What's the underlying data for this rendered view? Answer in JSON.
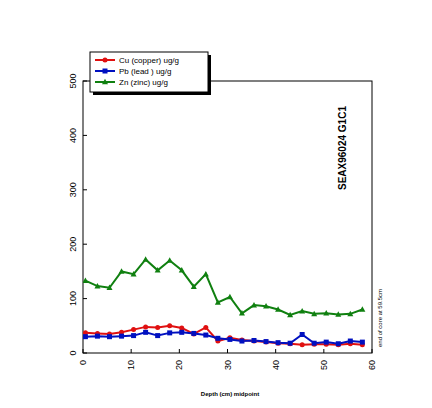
{
  "chart_data": {
    "type": "line",
    "x_label": "Depth (cm) midpoint",
    "annotations": [
      "SEAX96024 G1C1",
      "end of core at 59.5cm"
    ],
    "x": [
      0.5,
      3,
      5.5,
      8,
      10.5,
      13,
      15.5,
      18,
      20.5,
      23,
      25.5,
      28,
      30.5,
      33,
      35.5,
      38,
      40.5,
      43,
      45.5,
      48,
      50.5,
      53,
      55.5,
      58
    ],
    "series": [
      {
        "name": "Cu (copper) ug/g",
        "color": "#e01010",
        "marker": "circle",
        "line_style": "solid",
        "values": [
          37,
          36,
          35,
          38,
          43,
          48,
          47,
          50,
          46,
          35,
          47,
          22,
          28,
          24,
          22,
          20,
          18,
          17,
          15,
          16,
          16,
          15,
          17,
          15
        ]
      },
      {
        "name": "Pb (lead ) ug/g",
        "color": "#0010c0",
        "marker": "square",
        "line_style": "solid",
        "values": [
          30,
          31,
          30,
          31,
          32,
          38,
          32,
          37,
          38,
          36,
          33,
          27,
          25,
          22,
          23,
          21,
          19,
          18,
          34,
          18,
          20,
          17,
          22,
          20
        ]
      },
      {
        "name": "Zn (zinc) ug/g",
        "color": "#108010",
        "marker": "triangle",
        "line_style": "solid",
        "values": [
          133,
          123,
          120,
          150,
          145,
          172,
          152,
          170,
          152,
          122,
          145,
          93,
          103,
          73,
          88,
          86,
          80,
          70,
          77,
          72,
          73,
          71,
          72,
          80
        ]
      }
    ],
    "xlim": [
      0,
      60
    ],
    "xticks": [
      0,
      10,
      20,
      30,
      40,
      50,
      60
    ],
    "ylim": [
      0,
      500
    ],
    "yticks": [
      0,
      100,
      200,
      300,
      400,
      500
    ],
    "legend": "top-left",
    "grid": false
  }
}
